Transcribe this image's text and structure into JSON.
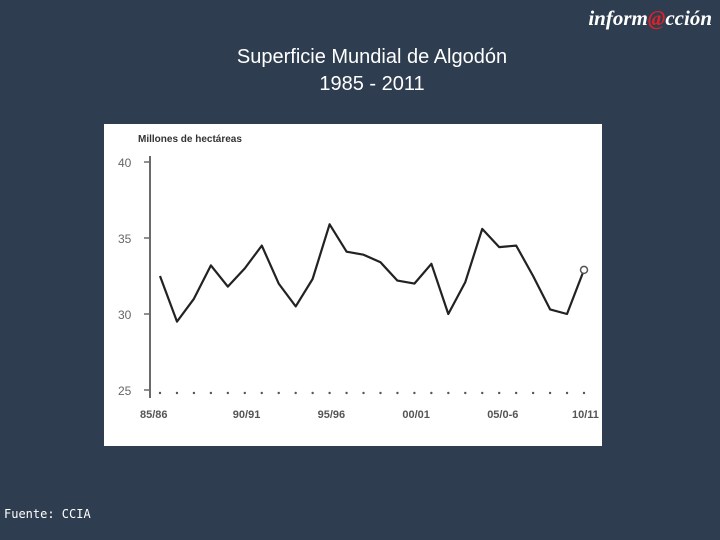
{
  "brand": {
    "prefix": "inform",
    "at": "@",
    "suffix": "cción"
  },
  "title": "Superficie Mundial de Algodón",
  "subtitle": "1985 - 2011",
  "source": "Fuente: CCIA",
  "chart_data": {
    "type": "line",
    "ylabel": "Millones de hectáreas",
    "ylim": [
      25,
      40
    ],
    "yticks": [
      25,
      30,
      35,
      40
    ],
    "xtick_labels": [
      "85/86",
      "90/91",
      "95/96",
      "00/01",
      "05/0-6",
      "10/11"
    ],
    "x": [
      "85/86",
      "86/87",
      "87/88",
      "88/89",
      "89/90",
      "90/91",
      "91/92",
      "92/93",
      "93/94",
      "94/95",
      "95/96",
      "96/97",
      "97/98",
      "98/99",
      "99/00",
      "00/01",
      "01/02",
      "02/03",
      "03/04",
      "04/05",
      "05/06",
      "06/07",
      "07/08",
      "08/09",
      "09/10",
      "10/11"
    ],
    "values": [
      32.5,
      29.5,
      31.0,
      33.2,
      31.8,
      33.0,
      34.5,
      32.0,
      30.5,
      32.3,
      35.9,
      34.1,
      33.9,
      33.4,
      32.2,
      32.0,
      33.3,
      30.0,
      32.1,
      35.6,
      34.4,
      34.5,
      32.5,
      30.3,
      30.0,
      32.9
    ],
    "highlight_last": true,
    "line_color": "#222222",
    "axis_color": "#6a6a6a"
  }
}
